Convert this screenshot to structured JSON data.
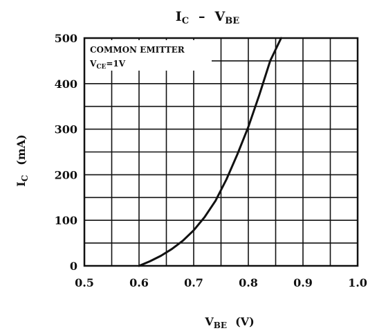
{
  "chart_data": {
    "type": "line",
    "title": {
      "main": "I",
      "main_sub": "C",
      "separator": "–",
      "second": "V",
      "second_sub": "BE"
    },
    "xlabel": {
      "main": "V",
      "sub": "BE",
      "unit": "(V)"
    },
    "ylabel": {
      "main": "I",
      "sub": "C",
      "unit": "(mA)"
    },
    "xlim": [
      0.5,
      1.0
    ],
    "ylim": [
      0,
      500
    ],
    "x_ticks": [
      0.5,
      0.6,
      0.7,
      0.8,
      0.9,
      1.0
    ],
    "x_tick_labels": [
      "0.5",
      "0.6",
      "0.7",
      "0.8",
      "0.9",
      "1.0"
    ],
    "y_ticks": [
      0,
      100,
      200,
      300,
      400,
      500
    ],
    "y_tick_labels": [
      "0",
      "100",
      "200",
      "300",
      "400",
      "500"
    ],
    "grid": true,
    "annotation": {
      "line1": "COMMON  EMITTER",
      "line2_main": "V",
      "line2_sub": "CE",
      "line2_rest": "=1V"
    },
    "series": [
      {
        "x": [
          0.6,
          0.62,
          0.64,
          0.66,
          0.68,
          0.7,
          0.72,
          0.74,
          0.76,
          0.78,
          0.8,
          0.82,
          0.84,
          0.86
        ],
        "y": [
          0,
          10,
          22,
          37,
          55,
          78,
          107,
          143,
          190,
          245,
          305,
          375,
          450,
          500
        ]
      }
    ]
  }
}
